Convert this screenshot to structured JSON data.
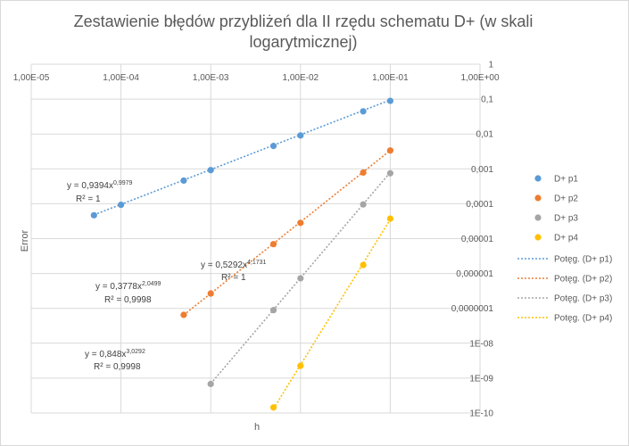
{
  "chart_data": {
    "type": "scatter",
    "title_line1": "Zestawienie błędów przybliżeń dla II rzędu schematu D+ (w skali",
    "title_line2": "logarytmicznej)",
    "xlabel": "h",
    "ylabel": "Error",
    "x_scale": "log",
    "y_scale": "log",
    "xlim": [
      1e-05,
      1
    ],
    "ylim": [
      1e-10,
      1
    ],
    "x_tick_labels": [
      "1,00E-05",
      "1,00E-04",
      "1,00E-03",
      "1,00E-02",
      "1,00E-01",
      "1,00E+00"
    ],
    "y_tick_labels": [
      "1",
      "0,1",
      "0,01",
      "0,001",
      "0,0001",
      "0,00001",
      "0,000001",
      "0,0000001",
      "1E-08",
      "1E-09",
      "1E-10"
    ],
    "grid": true,
    "legend_position": "right",
    "series": [
      {
        "name": "D+ p1",
        "color": "#5b9bd5",
        "x": [
          5e-05,
          0.0001,
          0.0005,
          0.001,
          0.005,
          0.01,
          0.05,
          0.1
        ],
        "y": [
          4.67e-05,
          9.32e-05,
          0.000461,
          0.00092,
          0.00454,
          0.00907,
          0.0446,
          0.0891
        ]
      },
      {
        "name": "D+ p2",
        "color": "#ed7d31",
        "x": [
          0.0005,
          0.001,
          0.005,
          0.01,
          0.05,
          0.1
        ],
        "y": [
          6.51e-08,
          2.67e-07,
          6.95e-06,
          2.83e-05,
          0.000784,
          0.00336
        ]
      },
      {
        "name": "D+ p3",
        "color": "#a5a5a5",
        "x": [
          0.001,
          0.005,
          0.01,
          0.05,
          0.1
        ],
        "y": [
          6.8e-10,
          8.91e-08,
          7.27e-07,
          9.56e-05,
          0.000747
        ]
      },
      {
        "name": "D+ p4",
        "color": "#ffc000",
        "x": [
          0.005,
          0.01,
          0.05,
          0.1
        ],
        "y": [
          1.44e-10,
          2.25e-09,
          1.75e-06,
          3.75e-05
        ]
      }
    ],
    "trendlines": [
      {
        "name": "Potęg. (D+ p1)",
        "color": "#5b9bd5",
        "coef": "y = 0,9394x",
        "exp": "0,9979",
        "r2": "R² = 1",
        "a": 0.9394,
        "b": 0.9979,
        "x_range": [
          5e-05,
          0.1
        ]
      },
      {
        "name": "Potęg. (D+ p2)",
        "color": "#ed7d31",
        "coef": "y = 0,3778x",
        "exp": "2,0499",
        "r2": "R² = 0,9998",
        "a": 0.3778,
        "b": 2.0499,
        "x_range": [
          0.0005,
          0.1
        ]
      },
      {
        "name": "Potęg. (D+ p3)",
        "color": "#a5a5a5",
        "coef": "y = 0,848x",
        "exp": "3,0292",
        "r2": "R² = 0,9998",
        "a": 0.848,
        "b": 3.0292,
        "x_range": [
          0.001,
          0.1
        ]
      },
      {
        "name": "Potęg. (D+ p4)",
        "color": "#ffc000",
        "coef": "y = 0,5292x",
        "exp": "4,1731",
        "r2": "R² = 1",
        "a": 0.5292,
        "b": 4.1731,
        "x_range": [
          0.005,
          0.1
        ]
      }
    ]
  }
}
